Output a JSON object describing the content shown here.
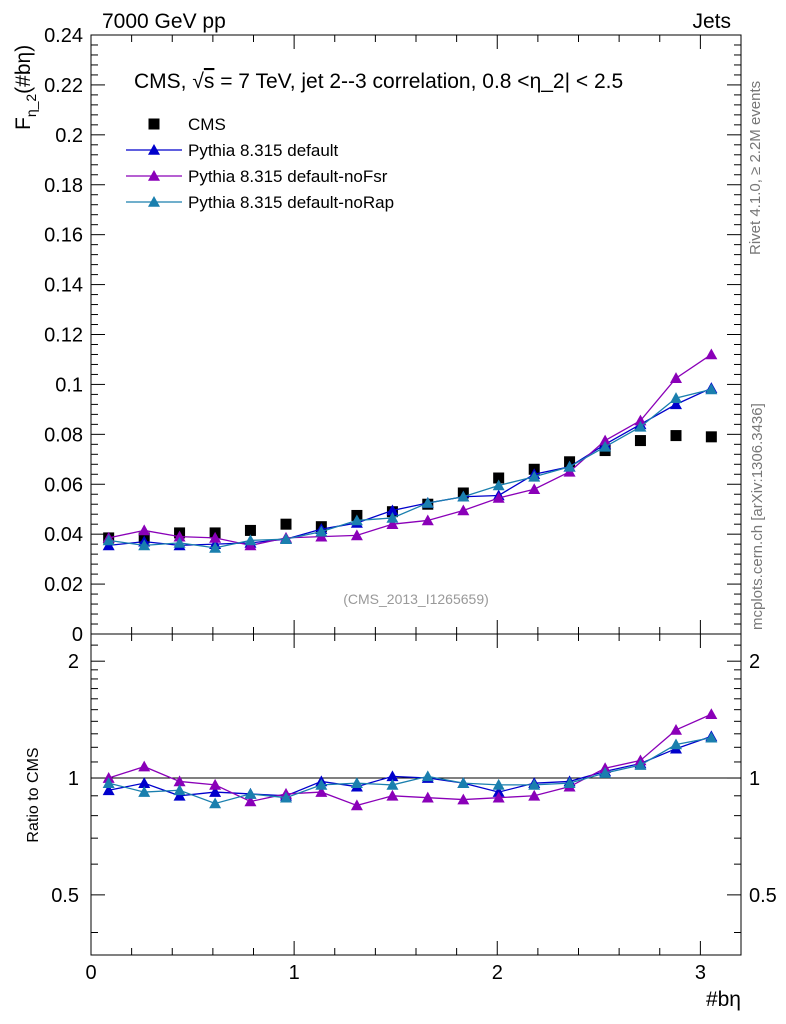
{
  "header": {
    "left": "7000 GeV pp",
    "right": "Jets"
  },
  "side_labels": {
    "rivet": "Rivet 4.1.0, ≥ 2.2M events",
    "mcplots": "mcplots.cern.ch [arXiv:1306.3436]"
  },
  "watermark": "(CMS_2013_I1265659)",
  "chart_data": [
    {
      "type": "line",
      "title": "CMS, √s = 7 TeV, jet 2--3 correlation, 0.8 <η_2| < 2.5",
      "title_parts": {
        "pre": "CMS, ",
        "sqrt_sym": "√",
        "sqrt_arg": "s",
        "post": " = 7 TeV, jet 2--3 correlation, 0.8 <η_2| < 2.5"
      },
      "ylabel": {
        "main": "F",
        "sub": "η_2",
        "rest": "(#bη)"
      },
      "xlim": [
        0,
        3.2
      ],
      "ylim": [
        0,
        0.24
      ],
      "yticks": [
        0,
        0.02,
        0.04,
        0.06,
        0.08,
        0.1,
        0.12,
        0.14,
        0.16,
        0.18,
        0.2,
        0.22,
        0.24
      ],
      "ytick_labels": [
        "0",
        "0.02",
        "0.04",
        "0.06",
        "0.08",
        "0.1",
        "0.12",
        "0.14",
        "0.16",
        "0.18",
        "0.2",
        "0.22",
        "0.24"
      ],
      "legend_position": "top-left",
      "x": [
        0.087,
        0.262,
        0.436,
        0.611,
        0.785,
        0.96,
        1.134,
        1.309,
        1.484,
        1.658,
        1.833,
        2.007,
        2.182,
        2.356,
        2.531,
        2.705,
        2.88,
        3.054
      ],
      "series": [
        {
          "name": "CMS",
          "color": "#000000",
          "marker": "square",
          "values": [
            0.0385,
            0.0385,
            0.0405,
            0.0405,
            0.0415,
            0.044,
            0.043,
            0.0475,
            0.049,
            0.052,
            0.0565,
            0.0625,
            0.066,
            0.069,
            0.0735,
            0.0775,
            0.0795,
            0.079
          ]
        },
        {
          "name": "Pythia 8.315 default",
          "color": "#0000cc",
          "marker": "triangle",
          "values": [
            0.0355,
            0.037,
            0.0355,
            0.036,
            0.0365,
            0.038,
            0.042,
            0.0445,
            0.0495,
            0.0525,
            0.055,
            0.0555,
            0.064,
            0.067,
            0.076,
            0.084,
            0.092,
            0.0985
          ]
        },
        {
          "name": "Pythia 8.315 default-noFsr",
          "color": "#8a00b8",
          "marker": "triangle",
          "values": [
            0.0385,
            0.0415,
            0.039,
            0.0385,
            0.0355,
            0.0385,
            0.039,
            0.0395,
            0.044,
            0.0455,
            0.0495,
            0.0545,
            0.058,
            0.065,
            0.0775,
            0.0855,
            0.1025,
            0.112
          ]
        },
        {
          "name": "Pythia 8.315 default-noRap",
          "color": "#1a7fae",
          "marker": "triangle",
          "values": [
            0.0375,
            0.0355,
            0.0365,
            0.0345,
            0.0375,
            0.038,
            0.041,
            0.0455,
            0.0465,
            0.0525,
            0.055,
            0.0595,
            0.063,
            0.067,
            0.075,
            0.083,
            0.0945,
            0.098
          ]
        }
      ]
    },
    {
      "type": "line",
      "ylabel": "Ratio to CMS",
      "xlabel": "#bη",
      "xlim": [
        0,
        3.2
      ],
      "ylim": [
        0.35,
        2.35
      ],
      "ytick_labels": [
        "0.5",
        "1",
        "2"
      ],
      "yticks": [
        0.5,
        1,
        2
      ],
      "xtick_labels": [
        "0",
        "1",
        "2",
        "3"
      ],
      "xticks": [
        0,
        1,
        2,
        3
      ],
      "reference_line": 1,
      "x": [
        0.087,
        0.262,
        0.436,
        0.611,
        0.785,
        0.96,
        1.134,
        1.309,
        1.484,
        1.658,
        1.833,
        2.007,
        2.182,
        2.356,
        2.531,
        2.705,
        2.88,
        3.054
      ],
      "series": [
        {
          "name": "Pythia 8.315 default",
          "color": "#0000cc",
          "values": [
            0.93,
            0.97,
            0.9,
            0.92,
            0.91,
            0.9,
            0.98,
            0.95,
            1.01,
            1.0,
            0.97,
            0.92,
            0.97,
            0.98,
            1.04,
            1.09,
            1.19,
            1.28
          ]
        },
        {
          "name": "Pythia 8.315 default-noFsr",
          "color": "#8a00b8",
          "values": [
            1.0,
            1.07,
            0.98,
            0.96,
            0.87,
            0.91,
            0.92,
            0.85,
            0.9,
            0.89,
            0.88,
            0.89,
            0.9,
            0.95,
            1.06,
            1.11,
            1.33,
            1.46
          ]
        },
        {
          "name": "Pythia 8.315 default-noRap",
          "color": "#1a7fae",
          "values": [
            0.97,
            0.92,
            0.93,
            0.86,
            0.91,
            0.89,
            0.96,
            0.97,
            0.96,
            1.01,
            0.97,
            0.96,
            0.96,
            0.97,
            1.03,
            1.08,
            1.22,
            1.27
          ]
        }
      ]
    }
  ]
}
